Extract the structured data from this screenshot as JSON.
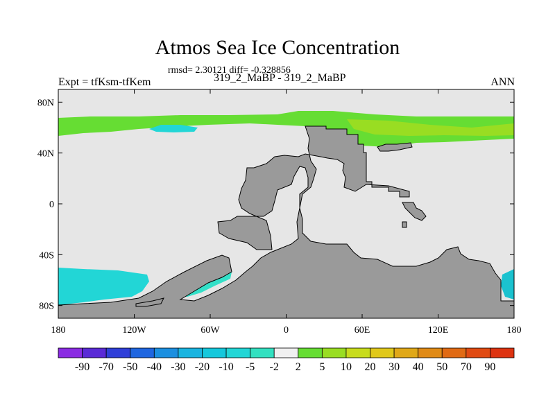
{
  "figure": {
    "title": "Atmos Sea Ice Concentration",
    "stats": "rmsd= 2.30121 diff= -0.328856",
    "left_label": "Expt = tfKsm-tfKem",
    "center_label": "319_2_MaBP - 319_2_MaBP",
    "right_label": "ANN"
  },
  "axes": {
    "x_ticks": [
      "180",
      "120W",
      "60W",
      "0",
      "60E",
      "120E",
      "180"
    ],
    "y_ticks": [
      "80N",
      "40N",
      "0",
      "40S",
      "80S"
    ],
    "lon_range": [
      -180,
      180
    ],
    "lat_range": [
      -90,
      90
    ]
  },
  "colors": {
    "background_field": "#e6e6e6",
    "land": "#9a9a9a",
    "positive_green": "#66dd33",
    "positive_yellowgreen": "#99dd22",
    "negative_teal": "#22d6d6",
    "negative_teal_light": "#33e0c8",
    "negative_teal_dark": "#1bc2cf"
  },
  "colorbar": {
    "labels": [
      "-90",
      "-70",
      "-50",
      "-40",
      "-30",
      "-20",
      "-10",
      "-5",
      "-2",
      "2",
      "5",
      "10",
      "20",
      "30",
      "40",
      "50",
      "70",
      "90"
    ],
    "colors": [
      "#8a2be2",
      "#5a2ad6",
      "#2f3fd8",
      "#1f66e0",
      "#1b8fe0",
      "#19b4e0",
      "#15c8dc",
      "#22d6d6",
      "#33e0c0",
      "#f0f0f0",
      "#66dd33",
      "#99dd22",
      "#c8dc1c",
      "#e0c81a",
      "#e0a818",
      "#e08a16",
      "#e06a14",
      "#e04a12",
      "#dd3311"
    ]
  }
}
